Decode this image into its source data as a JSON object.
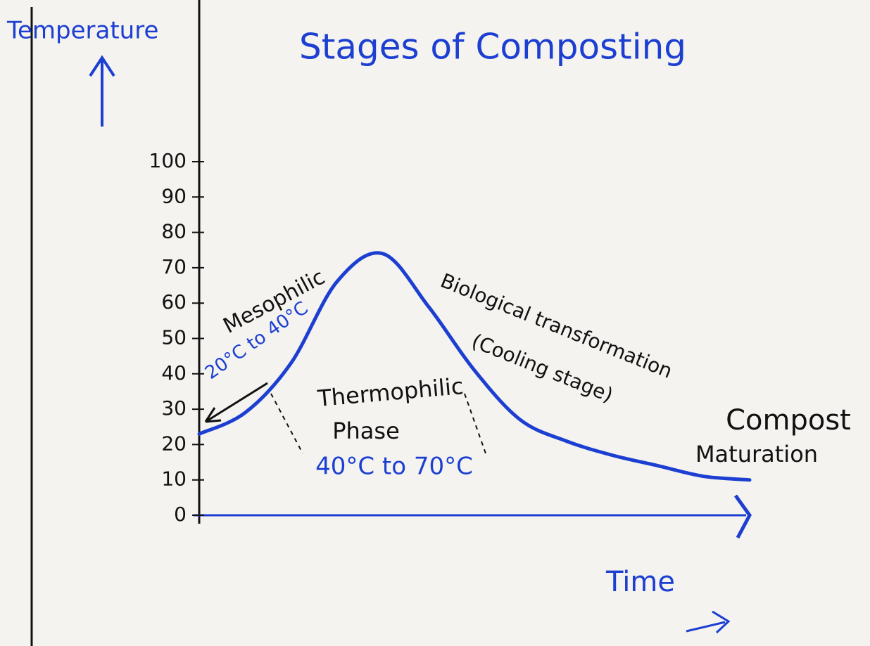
{
  "chart_data": {
    "type": "line",
    "title": "Stages of Composting",
    "y_label": "Temperature",
    "x_label": "Time",
    "categories": [
      null,
      null,
      null,
      null,
      null,
      null,
      null,
      null,
      null,
      null,
      null,
      null,
      null
    ],
    "series": [
      {
        "color": "#1c3fd1",
        "values": [
          23,
          29,
          43,
          66,
          74,
          59,
          41,
          27,
          21,
          17,
          14,
          11,
          10
        ]
      }
    ],
    "ylim": [
      0,
      100
    ],
    "yticks": [
      0,
      10,
      20,
      30,
      40,
      50,
      60,
      70,
      80,
      90,
      100
    ],
    "annotations": [
      {
        "text": "Mesophilic",
        "color": "#111111"
      },
      {
        "text": "20°C to 40°C",
        "color": "#1c3fd1"
      },
      {
        "text": "Thermophilic",
        "color": "#111111"
      },
      {
        "text": "Phase",
        "color": "#111111"
      },
      {
        "text": "40°C to 70°C",
        "color": "#1c3fd1"
      },
      {
        "text": "Biological transformation",
        "color": "#111111"
      },
      {
        "text": "(Cooling stage)",
        "color": "#111111"
      },
      {
        "text": "Compost",
        "color": "#111111"
      },
      {
        "text": "Maturation",
        "color": "#111111"
      }
    ]
  }
}
